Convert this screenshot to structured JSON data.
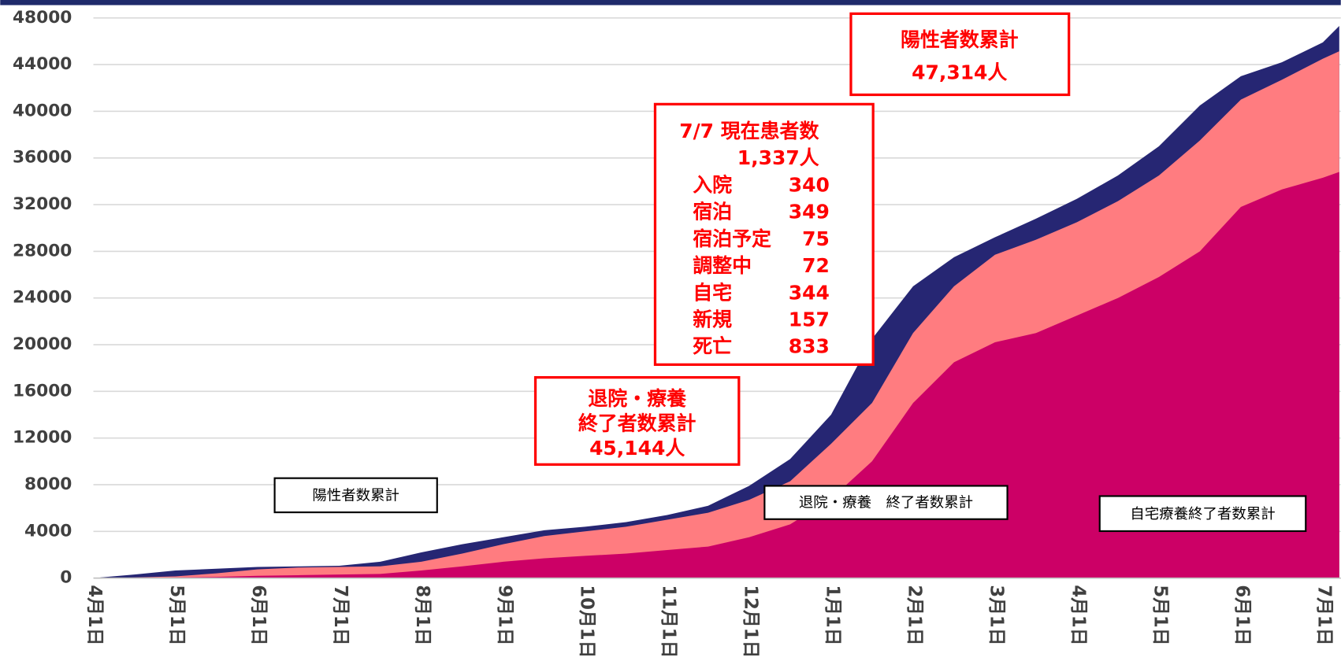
{
  "chart_data": {
    "type": "area",
    "categories": [
      "4月1日",
      null,
      "5月1日",
      null,
      "6月1日",
      null,
      "7月1日",
      null,
      "8月1日",
      null,
      "9月1日",
      null,
      "10月1日",
      null,
      "11月1日",
      null,
      "12月1日",
      null,
      "1月1日",
      null,
      "2月1日",
      null,
      "3月1日",
      null,
      "4月1日",
      null,
      "5月1日",
      null,
      "6月1日",
      null,
      "7月1日",
      null
    ],
    "series": [
      {
        "name": "陽性者数累計",
        "color": "#262673",
        "values": [
          0,
          300,
          650,
          800,
          950,
          1000,
          1050,
          1400,
          2200,
          2900,
          3500,
          4100,
          4400,
          4800,
          5400,
          6200,
          7900,
          10200,
          14000,
          20500,
          25000,
          27500,
          29200,
          30800,
          32500,
          34500,
          37000,
          40500,
          43000,
          44200,
          45900,
          47314
        ]
      },
      {
        "name": "退院・療養　終了者数累計",
        "color": "#ff7c80",
        "values": [
          0,
          50,
          150,
          400,
          750,
          900,
          950,
          1000,
          1400,
          2100,
          2900,
          3600,
          4000,
          4400,
          5000,
          5600,
          6700,
          8300,
          11500,
          15000,
          21000,
          25000,
          27700,
          29000,
          30500,
          32300,
          34500,
          37500,
          41000,
          42700,
          44500,
          45144
        ]
      },
      {
        "name": "自宅療養終了者数累計",
        "color": "#cc0066",
        "values": [
          0,
          0,
          50,
          100,
          200,
          250,
          300,
          350,
          650,
          1000,
          1400,
          1700,
          1900,
          2100,
          2400,
          2700,
          3500,
          4600,
          6800,
          10000,
          15000,
          18500,
          20200,
          21000,
          22500,
          24000,
          25800,
          28000,
          31800,
          33300,
          34300,
          34800
        ]
      }
    ],
    "ylim": [
      0,
      48000
    ],
    "yticks": [
      0,
      4000,
      8000,
      12000,
      16000,
      20000,
      24000,
      28000,
      32000,
      36000,
      40000,
      44000,
      48000
    ],
    "grid": true,
    "annotations": {
      "positive_box": [
        "陽性者数累計",
        "47,314人"
      ],
      "patient_box": {
        "title": "7/7 現在患者数",
        "total": "1,337人",
        "rows": [
          {
            "label": "入院",
            "value": "340"
          },
          {
            "label": "宿泊",
            "value": "349"
          },
          {
            "label": "宿泊予定",
            "value": "75"
          },
          {
            "label": "調整中",
            "value": "72"
          },
          {
            "label": "自宅",
            "value": "344"
          },
          {
            "label": "新規",
            "value": "157"
          },
          {
            "label": "死亡",
            "value": "833"
          }
        ]
      },
      "recovered_box": [
        "退院・療養",
        "終了者数累計",
        "45,144人"
      ]
    }
  }
}
